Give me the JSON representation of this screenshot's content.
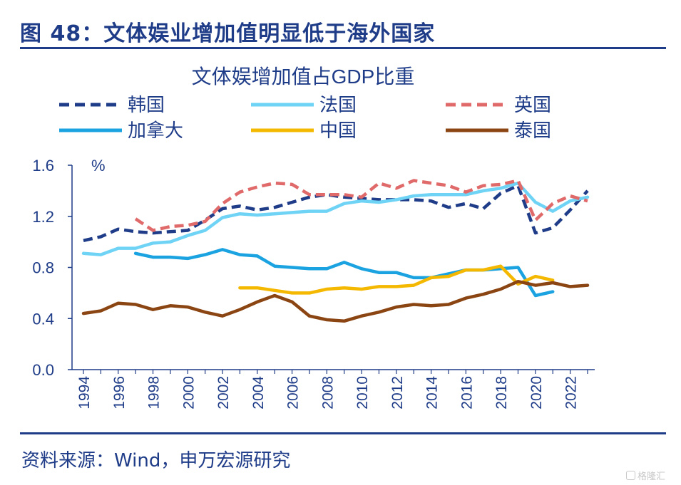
{
  "figure": {
    "title": "图 48：文体娱业增加值明显低于海外国家",
    "source": "资料来源：Wind，申万宏源研究",
    "watermark": "格隆汇"
  },
  "chart_data": {
    "type": "line",
    "title": "文体娱增加值占GDP比重",
    "ylabel": "%",
    "xlabel": "",
    "xlim": [
      1994,
      2023
    ],
    "ylim": [
      0.0,
      1.6
    ],
    "yticks": [
      "0.0",
      "0.4",
      "0.8",
      "1.2",
      "1.6"
    ],
    "xticks": [
      "1994",
      "1996",
      "1998",
      "2000",
      "2002",
      "2004",
      "2006",
      "2008",
      "2010",
      "2012",
      "2014",
      "2016",
      "2018",
      "2020",
      "2022"
    ],
    "legend": [
      "韩国",
      "法国",
      "英国",
      "加拿大",
      "中国",
      "泰国"
    ],
    "series": [
      {
        "name": "韩国",
        "color": "#1f3c88",
        "style": "dashed",
        "x": [
          1994,
          1995,
          1996,
          1997,
          1998,
          1999,
          2000,
          2001,
          2002,
          2003,
          2004,
          2005,
          2006,
          2007,
          2008,
          2009,
          2010,
          2011,
          2012,
          2013,
          2014,
          2015,
          2016,
          2017,
          2018,
          2019,
          2020,
          2021,
          2022,
          2023
        ],
        "values": [
          1.01,
          1.04,
          1.1,
          1.08,
          1.07,
          1.08,
          1.09,
          1.17,
          1.26,
          1.28,
          1.25,
          1.27,
          1.31,
          1.35,
          1.37,
          1.35,
          1.34,
          1.33,
          1.33,
          1.33,
          1.32,
          1.27,
          1.3,
          1.26,
          1.38,
          1.44,
          1.07,
          1.11,
          1.25,
          1.4
        ]
      },
      {
        "name": "法国",
        "color": "#6fd3f5",
        "style": "solid",
        "x": [
          1994,
          1995,
          1996,
          1997,
          1998,
          1999,
          2000,
          2001,
          2002,
          2003,
          2004,
          2005,
          2006,
          2007,
          2008,
          2009,
          2010,
          2011,
          2012,
          2013,
          2014,
          2015,
          2016,
          2017,
          2018,
          2019,
          2020,
          2021,
          2022,
          2023
        ],
        "values": [
          0.91,
          0.9,
          0.95,
          0.95,
          0.99,
          1.0,
          1.05,
          1.09,
          1.19,
          1.22,
          1.21,
          1.22,
          1.23,
          1.24,
          1.24,
          1.3,
          1.32,
          1.31,
          1.33,
          1.36,
          1.37,
          1.37,
          1.37,
          1.4,
          1.42,
          1.46,
          1.31,
          1.24,
          1.32,
          1.35
        ]
      },
      {
        "name": "英国",
        "color": "#e06a6a",
        "style": "dashed",
        "x": [
          1997,
          1998,
          1999,
          2000,
          2001,
          2002,
          2003,
          2004,
          2005,
          2006,
          2007,
          2008,
          2009,
          2010,
          2011,
          2012,
          2013,
          2014,
          2015,
          2016,
          2017,
          2018,
          2019,
          2020,
          2021,
          2022,
          2023
        ],
        "values": [
          1.18,
          1.09,
          1.12,
          1.13,
          1.16,
          1.3,
          1.39,
          1.43,
          1.46,
          1.45,
          1.37,
          1.37,
          1.37,
          1.35,
          1.46,
          1.42,
          1.48,
          1.46,
          1.44,
          1.39,
          1.44,
          1.45,
          1.48,
          1.17,
          1.3,
          1.36,
          1.32
        ]
      },
      {
        "name": "加拿大",
        "color": "#1aa3e0",
        "style": "solid",
        "x": [
          1997,
          1998,
          1999,
          2000,
          2001,
          2002,
          2003,
          2004,
          2005,
          2006,
          2007,
          2008,
          2009,
          2010,
          2011,
          2012,
          2013,
          2014,
          2015,
          2016,
          2017,
          2018,
          2019,
          2020,
          2021
        ],
        "values": [
          0.91,
          0.88,
          0.88,
          0.87,
          0.9,
          0.94,
          0.9,
          0.89,
          0.81,
          0.8,
          0.79,
          0.79,
          0.84,
          0.79,
          0.76,
          0.76,
          0.72,
          0.72,
          0.75,
          0.78,
          0.78,
          0.79,
          0.8,
          0.58,
          0.61
        ]
      },
      {
        "name": "中国",
        "color": "#f5b800",
        "style": "solid",
        "x": [
          2003,
          2004,
          2005,
          2006,
          2007,
          2008,
          2009,
          2010,
          2011,
          2012,
          2013,
          2014,
          2015,
          2016,
          2017,
          2018,
          2019,
          2020,
          2021
        ],
        "values": [
          0.64,
          0.64,
          0.62,
          0.6,
          0.6,
          0.63,
          0.64,
          0.63,
          0.65,
          0.65,
          0.66,
          0.72,
          0.73,
          0.78,
          0.78,
          0.81,
          0.67,
          0.73,
          0.7
        ]
      },
      {
        "name": "泰国",
        "color": "#8b4513",
        "style": "solid",
        "x": [
          1994,
          1995,
          1996,
          1997,
          1998,
          1999,
          2000,
          2001,
          2002,
          2003,
          2004,
          2005,
          2006,
          2007,
          2008,
          2009,
          2010,
          2011,
          2012,
          2013,
          2014,
          2015,
          2016,
          2017,
          2018,
          2019,
          2020,
          2021,
          2022,
          2023
        ],
        "values": [
          0.44,
          0.46,
          0.52,
          0.51,
          0.47,
          0.5,
          0.49,
          0.45,
          0.42,
          0.47,
          0.53,
          0.58,
          0.53,
          0.42,
          0.39,
          0.38,
          0.42,
          0.45,
          0.49,
          0.51,
          0.5,
          0.51,
          0.56,
          0.59,
          0.63,
          0.69,
          0.66,
          0.68,
          0.65,
          0.66
        ]
      }
    ]
  }
}
